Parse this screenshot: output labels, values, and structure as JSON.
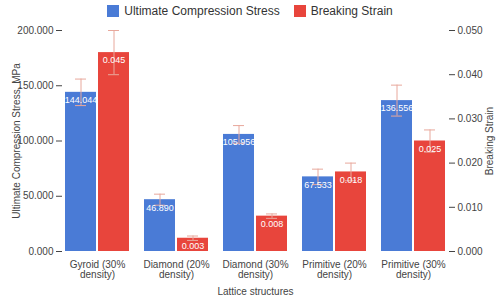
{
  "chart_data": {
    "type": "bar",
    "xlabel": "Lattice structures",
    "ylabel": "Ultimate Compression Stress, MPa",
    "y2label": "Breaking Strain",
    "categories": [
      "Gyroid (30% density)",
      "Diamond (20% density)",
      "Diamond (30% density)",
      "Primitive (20% density)",
      "Primitive (30% density)"
    ],
    "series": [
      {
        "name": "Ultimate Compression Stress",
        "color": "#4a7bd6",
        "values": [
          144.044,
          46.89,
          105.956,
          67.533,
          136.556
        ],
        "value_labels": [
          "144.044",
          "46.890",
          "105.956",
          "67.533",
          "136.556"
        ],
        "errors": [
          12,
          5,
          8,
          7,
          14
        ]
      },
      {
        "name": "Breaking Strain",
        "color": "#e8453c",
        "axis": "y2",
        "values": [
          0.045,
          0.003,
          0.008,
          0.018,
          0.025
        ],
        "value_labels": [
          "0.045",
          "0.003",
          "0.008",
          "0.018",
          "0.025"
        ],
        "errors": [
          0.005,
          0.0005,
          0.0005,
          0.002,
          0.0025
        ]
      }
    ],
    "ylim": [
      0,
      200
    ],
    "yticks": [
      {
        "value": 0,
        "label": "0.000"
      },
      {
        "value": 50,
        "label": "50.000"
      },
      {
        "value": 100,
        "label": "100.000"
      },
      {
        "value": 150,
        "label": "150.000"
      },
      {
        "value": 200,
        "label": "200.000"
      }
    ],
    "y2lim": [
      0,
      0.05
    ],
    "y2ticks": [
      {
        "value": 0,
        "label": "0.000"
      },
      {
        "value": 0.01,
        "label": "0.010"
      },
      {
        "value": 0.02,
        "label": "0.020"
      },
      {
        "value": 0.03,
        "label": "0.030"
      },
      {
        "value": 0.04,
        "label": "0.040"
      },
      {
        "value": 0.05,
        "label": "0.050"
      }
    ],
    "legend": "top",
    "data_labels": true,
    "grid": false
  }
}
